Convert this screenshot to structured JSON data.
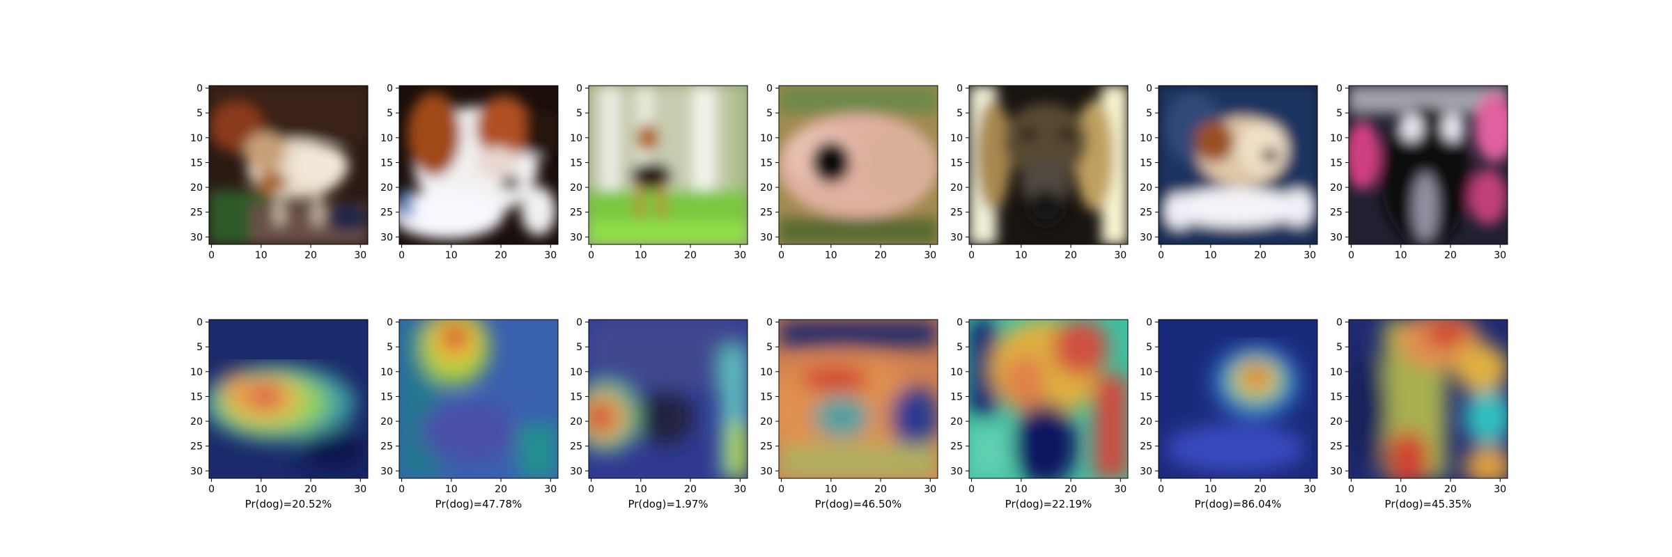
{
  "figure": {
    "axis": {
      "xticks": [
        "0",
        "10",
        "20",
        "30"
      ],
      "yticks": [
        "0",
        "5",
        "10",
        "15",
        "20",
        "25",
        "30"
      ]
    },
    "colors": {
      "axis": "#000000",
      "background": "#ffffff"
    },
    "panels": [
      {
        "image": "small-dog-standing-photo",
        "heatmap": "heatmap-overlay-1",
        "label": "Pr(dog)=20.52%",
        "probability": 20.52
      },
      {
        "image": "white-brown-dog-lying-photo",
        "heatmap": "heatmap-overlay-2",
        "label": "Pr(dog)=47.78%",
        "probability": 47.78
      },
      {
        "image": "terrier-on-grass-photo",
        "heatmap": "heatmap-overlay-3",
        "label": "Pr(dog)=1.97%",
        "probability": 1.97
      },
      {
        "image": "fluffy-dog-closeup-photo",
        "heatmap": "heatmap-overlay-4",
        "label": "Pr(dog)=46.50%",
        "probability": 46.5
      },
      {
        "image": "dark-dog-face-photo",
        "heatmap": "heatmap-overlay-5",
        "label": "Pr(dog)=22.19%",
        "probability": 22.19
      },
      {
        "image": "dog-with-bone-photo",
        "heatmap": "heatmap-overlay-6",
        "label": "Pr(dog)=86.04%",
        "probability": 86.04
      },
      {
        "image": "black-dog-flowers-photo",
        "heatmap": "heatmap-overlay-7",
        "label": "Pr(dog)=45.35%",
        "probability": 45.35
      }
    ]
  }
}
